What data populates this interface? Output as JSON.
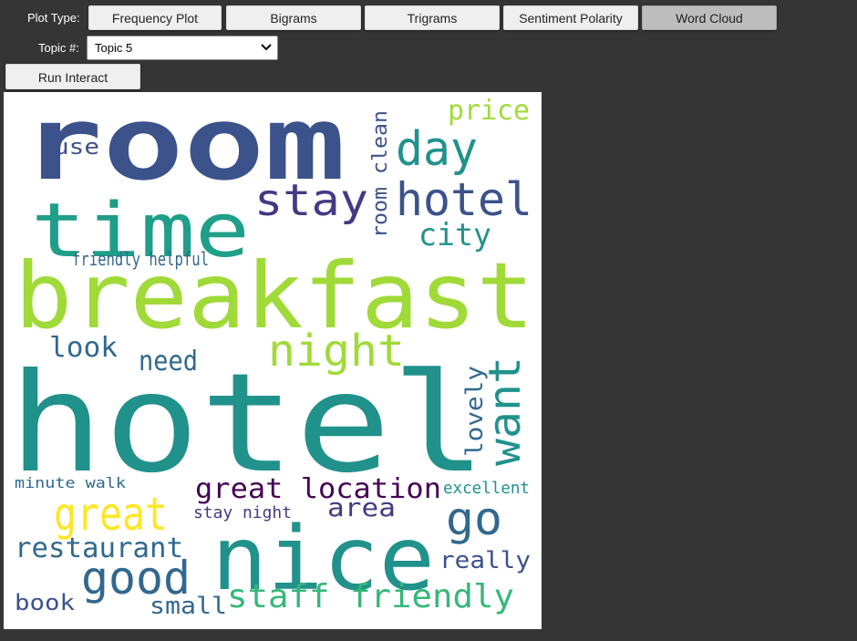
{
  "plot_type_label": "Plot Type:",
  "topic_label": "Topic #:",
  "tabs": [
    {
      "id": "frequency",
      "label": "Frequency Plot",
      "active": false
    },
    {
      "id": "bigrams",
      "label": "Bigrams",
      "active": false
    },
    {
      "id": "trigrams",
      "label": "Trigrams",
      "active": false
    },
    {
      "id": "sentiment",
      "label": "Sentiment Polarity",
      "active": false
    },
    {
      "id": "wordcloud",
      "label": "Word Cloud",
      "active": true
    }
  ],
  "topic_select": {
    "value": "Topic 5"
  },
  "run_button": "Run Interact",
  "colors": {
    "background": "#353535",
    "button": "#efefef",
    "button_active": "#bdbdbd",
    "palette": [
      "#3b528b",
      "#31688e",
      "#21918c",
      "#1f9e89",
      "#35b779",
      "#5ec962",
      "#a0da39",
      "#fde725",
      "#443983",
      "#440154"
    ]
  },
  "word_cloud": {
    "words": [
      {
        "text": "room",
        "size": 110,
        "color": "#3b528b"
      },
      {
        "text": "hotel",
        "size": 140,
        "color": "#21918c"
      },
      {
        "text": "breakfast",
        "size": 100,
        "color": "#a0da39"
      },
      {
        "text": "time",
        "size": 78,
        "color": "#1f9e89"
      },
      {
        "text": "nice",
        "size": 92,
        "color": "#21918c"
      },
      {
        "text": "stay",
        "size": 50,
        "color": "#443983"
      },
      {
        "text": "hotel",
        "size": 52,
        "color": "#3b528b"
      },
      {
        "text": "day",
        "size": 52,
        "color": "#21918c"
      },
      {
        "text": "city",
        "size": 34,
        "color": "#21918c"
      },
      {
        "text": "price",
        "size": 30,
        "color": "#a0da39"
      },
      {
        "text": "night",
        "size": 48,
        "color": "#a0da39"
      },
      {
        "text": "want",
        "size": 48,
        "color": "#21918c"
      },
      {
        "text": "great",
        "size": 48,
        "color": "#fde725"
      },
      {
        "text": "good",
        "size": 48,
        "color": "#31688e"
      },
      {
        "text": "go",
        "size": 48,
        "color": "#31688e"
      },
      {
        "text": "staff friendly",
        "size": 36,
        "color": "#35b779"
      },
      {
        "text": "restaurant",
        "size": 30,
        "color": "#31688e"
      },
      {
        "text": "great location",
        "size": 30,
        "color": "#440154"
      },
      {
        "text": "area",
        "size": 28,
        "color": "#443983"
      },
      {
        "text": "friendly helpful",
        "size": 20,
        "color": "#31688e"
      },
      {
        "text": "room clean",
        "size": 22,
        "color": "#3b528b"
      },
      {
        "text": "look",
        "size": 30,
        "color": "#31688e"
      },
      {
        "text": "need",
        "size": 30,
        "color": "#31688e"
      },
      {
        "text": "lovely",
        "size": 30,
        "color": "#31688e"
      },
      {
        "text": "really",
        "size": 26,
        "color": "#3b528b"
      },
      {
        "text": "small",
        "size": 26,
        "color": "#31688e"
      },
      {
        "text": "book",
        "size": 22,
        "color": "#3b528b"
      },
      {
        "text": "use",
        "size": 22,
        "color": "#3b528b"
      },
      {
        "text": "excellent",
        "size": 18,
        "color": "#21918c"
      },
      {
        "text": "stay night",
        "size": 18,
        "color": "#443983"
      },
      {
        "text": "minute walk",
        "size": 16,
        "color": "#31688e"
      }
    ]
  }
}
